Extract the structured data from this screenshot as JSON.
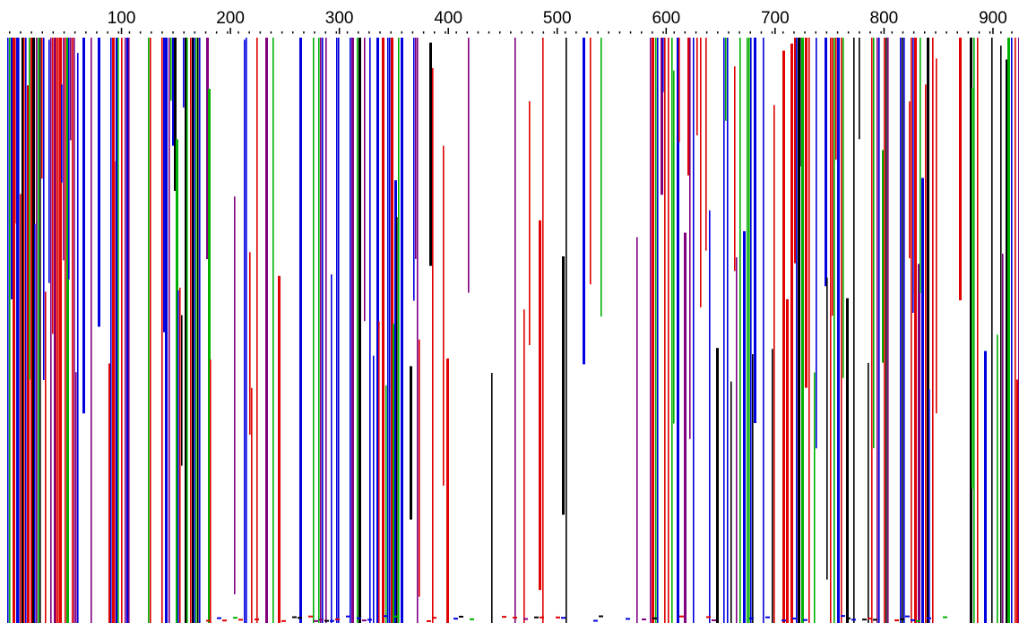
{
  "ruler": {
    "labels": [
      100,
      200,
      300,
      400,
      500,
      600,
      700,
      800,
      900
    ]
  }
}
